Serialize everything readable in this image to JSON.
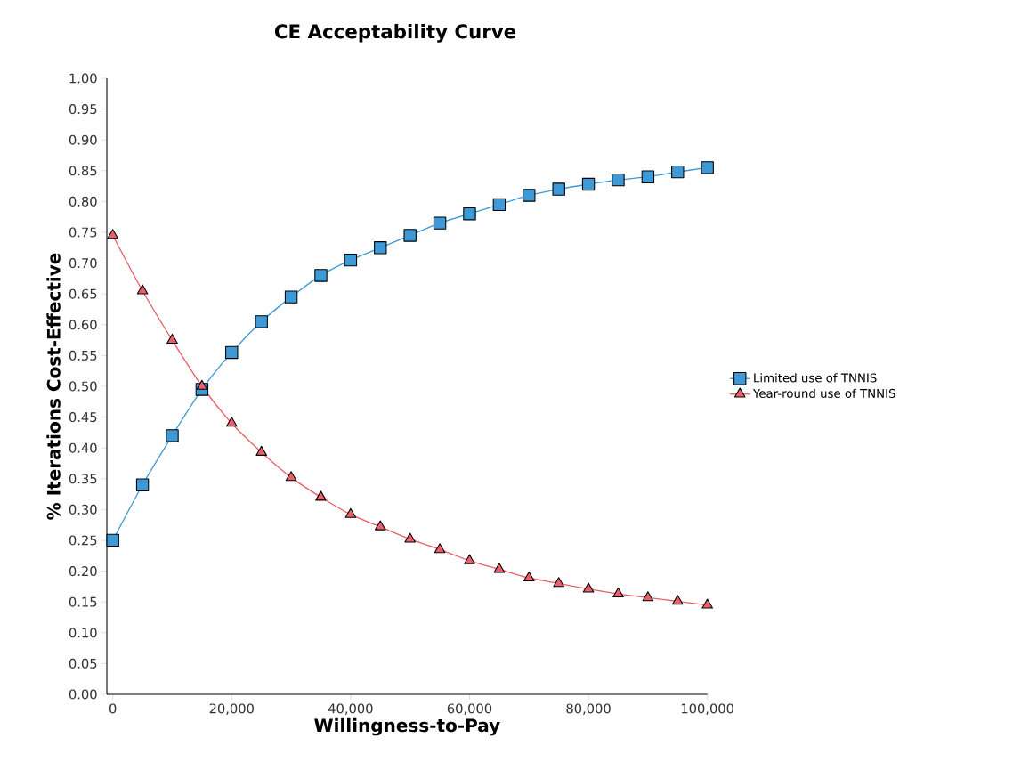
{
  "chart_data": {
    "type": "line",
    "title": "CE Acceptability Curve",
    "xlabel": "Willingness-to-Pay",
    "ylabel": "% Iterations Cost-Effective",
    "x": [
      0,
      5000,
      10000,
      15000,
      20000,
      25000,
      30000,
      35000,
      40000,
      45000,
      50000,
      55000,
      60000,
      65000,
      70000,
      75000,
      80000,
      85000,
      90000,
      95000,
      100000
    ],
    "series": [
      {
        "name": "Limited use of TNNIS",
        "color": "#3d9ad6",
        "marker": "square",
        "values": [
          0.25,
          0.34,
          0.42,
          0.495,
          0.555,
          0.605,
          0.645,
          0.68,
          0.705,
          0.725,
          0.745,
          0.765,
          0.78,
          0.795,
          0.81,
          0.82,
          0.828,
          0.835,
          0.84,
          0.848,
          0.855
        ]
      },
      {
        "name": "Year-round use of TNNIS",
        "color": "#e8606a",
        "marker": "triangle",
        "values": [
          0.745,
          0.655,
          0.575,
          0.5,
          0.44,
          0.393,
          0.352,
          0.32,
          0.292,
          0.272,
          0.252,
          0.235,
          0.217,
          0.203,
          0.189,
          0.18,
          0.171,
          0.163,
          0.157,
          0.151,
          0.145
        ]
      }
    ],
    "xlim": [
      -1000,
      100000
    ],
    "ylim": [
      0,
      1
    ],
    "xticks": [
      0,
      {
        "value": 20000,
        "label": "20,000"
      },
      {
        "value": 40000,
        "label": "40,000"
      },
      {
        "value": 60000,
        "label": "60,000"
      },
      {
        "value": 80000,
        "label": "80,000"
      },
      {
        "value": 100000,
        "label": "100,000"
      }
    ],
    "yticks": [
      {
        "value": 0,
        "label": "0.00"
      },
      {
        "value": 0.05,
        "label": "0.05"
      },
      {
        "value": 0.1,
        "label": "0.10"
      },
      {
        "value": 0.15,
        "label": "0.15"
      },
      {
        "value": 0.2,
        "label": "0.20"
      },
      {
        "value": 0.25,
        "label": "0.25"
      },
      {
        "value": 0.3,
        "label": "0.30"
      },
      {
        "value": 0.35,
        "label": "0.35"
      },
      {
        "value": 0.4,
        "label": "0.40"
      },
      {
        "value": 0.45,
        "label": "0.45"
      },
      {
        "value": 0.5,
        "label": "0.50"
      },
      {
        "value": 0.55,
        "label": "0.55"
      },
      {
        "value": 0.6,
        "label": "0.60"
      },
      {
        "value": 0.65,
        "label": "0.65"
      },
      {
        "value": 0.7,
        "label": "0.70"
      },
      {
        "value": 0.75,
        "label": "0.75"
      },
      {
        "value": 0.8,
        "label": "0.80"
      },
      {
        "value": 0.85,
        "label": "0.85"
      },
      {
        "value": 0.9,
        "label": "0.90"
      },
      {
        "value": 0.95,
        "label": "0.95"
      },
      {
        "value": 1,
        "label": "1.00"
      }
    ],
    "grid": false,
    "legend": "right",
    "line_style": "solid"
  }
}
